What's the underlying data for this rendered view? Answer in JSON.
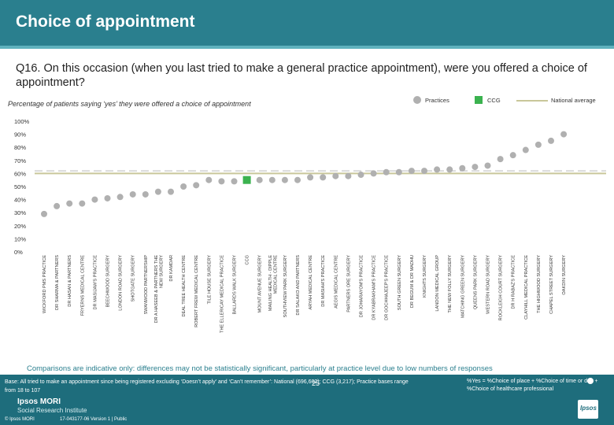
{
  "header": {
    "title": "Choice of appointment",
    "question": "Q16. On this occasion (when you last tried to make a general practice appointment), were you offered a choice of appointment?",
    "subtitle": "Percentage of patients saying ‘yes’ they were offered a choice of appointment"
  },
  "legend": {
    "practices": "Practices",
    "ccg": "CCG",
    "national": "National average"
  },
  "note": "Comparisons are indicative only: differences may not be statistically significant, particularly at practice level due to low numbers of responses",
  "footer": {
    "base": "Base: All tried to make an appointment since being registered excluding ‘Doesn’t apply’ and ‘Can’t remember’: National (696,602); CCG (3,217); Practice bases range from 18 to 107",
    "definition": "%Yes = %Choice of place + %Choice of time or day + %Choice of healthcare professional",
    "org_line1": "Ipsos MORI",
    "org_line2": "Social Research Institute",
    "copyright": "© Ipsos MORI",
    "version": "17-043177-06 Version 1 | Public",
    "page_number": "25",
    "logo_text": "Ipsos"
  },
  "colors": {
    "header_bg": "#2a7f8e",
    "footer_bg": "#1e6d7c",
    "practice_marker": "#b0b0b0",
    "ccg_marker": "#3bb24f",
    "national_line": "#c9c79a",
    "threshold_line": "#d0d0d0"
  },
  "chart_data": {
    "type": "scatter",
    "ylim": [
      0,
      100
    ],
    "y_ticks": [
      "0%",
      "10%",
      "20%",
      "30%",
      "40%",
      "50%",
      "60%",
      "70%",
      "80%",
      "90%",
      "100%"
    ],
    "grid": false,
    "legend_position": "top-right",
    "national_average": 60,
    "reference_line": 62,
    "categories": [
      "WICKFORD PMS PRACTICE",
      "DR SHARMA & PARTNERS",
      "DR HASAN & PARTNERS",
      "FRYERNS MEDICAL CENTRE",
      "DR MASIJAW'S PRACTICE",
      "BEECHWOOD SURGERY",
      "LONDON ROAD SURGERY",
      "SHOTGATE SURGERY",
      "SWANWOOD PARTNERSHIP",
      "DR A HASEEB & PARTNERS THE NEW SURGERY",
      "DR KAMDAR",
      "DEAL TREE HEALTH CENTRE",
      "ROBERT FREW MEDICAL CENTRE",
      "TILE HOUSE SURGERY",
      "THE ELLERICAY MEDICAL PRACTICE",
      "BALLARDS WALK SURGERY",
      "CCG",
      "MOUNT AVENUE SURGERY",
      "MAILING HEALTH - DIPPLE MEDICAL CENTRE",
      "SOUTHVIEW PARK SURGERY",
      "DR SALAKO AND PARTNERS",
      "ARYAH MEDICAL CENTRE",
      "DR MASIAH'S PRACTICE",
      "AEGIS MEDICAL CENTRE",
      "PARTNERS ORE SURGERY",
      "DR JOHARAYOM'S PRACTICE",
      "DR KYABRAKHAM'S PRACTICE",
      "DR GOCHHAJEEP'S PRACTICE",
      "SOUTH GREEN SURGERY",
      "DR BEGUM & DR MADHU",
      "KNIGHTS SURGERY",
      "LANDON MEDICAL GROUP",
      "THE NEW FOLLY SURGERY",
      "MATCHING GREEN SURGERY",
      "QUEENS PARK SURGERY",
      "WESTERN ROAD SURGERY",
      "ROCKLEIGH COURT SURGERY",
      "DR H RABAZ'S PRACTICE",
      "CLAYHILL MEDICAL PRACTICE",
      "THE HIGHWOOD SURGERY",
      "CHAPEL STREET SURGERY",
      "OAKDIN SURGERY"
    ],
    "values": [
      29,
      35,
      37,
      37,
      40,
      41,
      42,
      44,
      44,
      46,
      46,
      50,
      51,
      55,
      54,
      54,
      55,
      55,
      55,
      55,
      55,
      57,
      57,
      58,
      58,
      59,
      60,
      61,
      61,
      62,
      62,
      63,
      63,
      64,
      65,
      66,
      71,
      74,
      78,
      82,
      85,
      90
    ],
    "ccg_index": 16
  }
}
